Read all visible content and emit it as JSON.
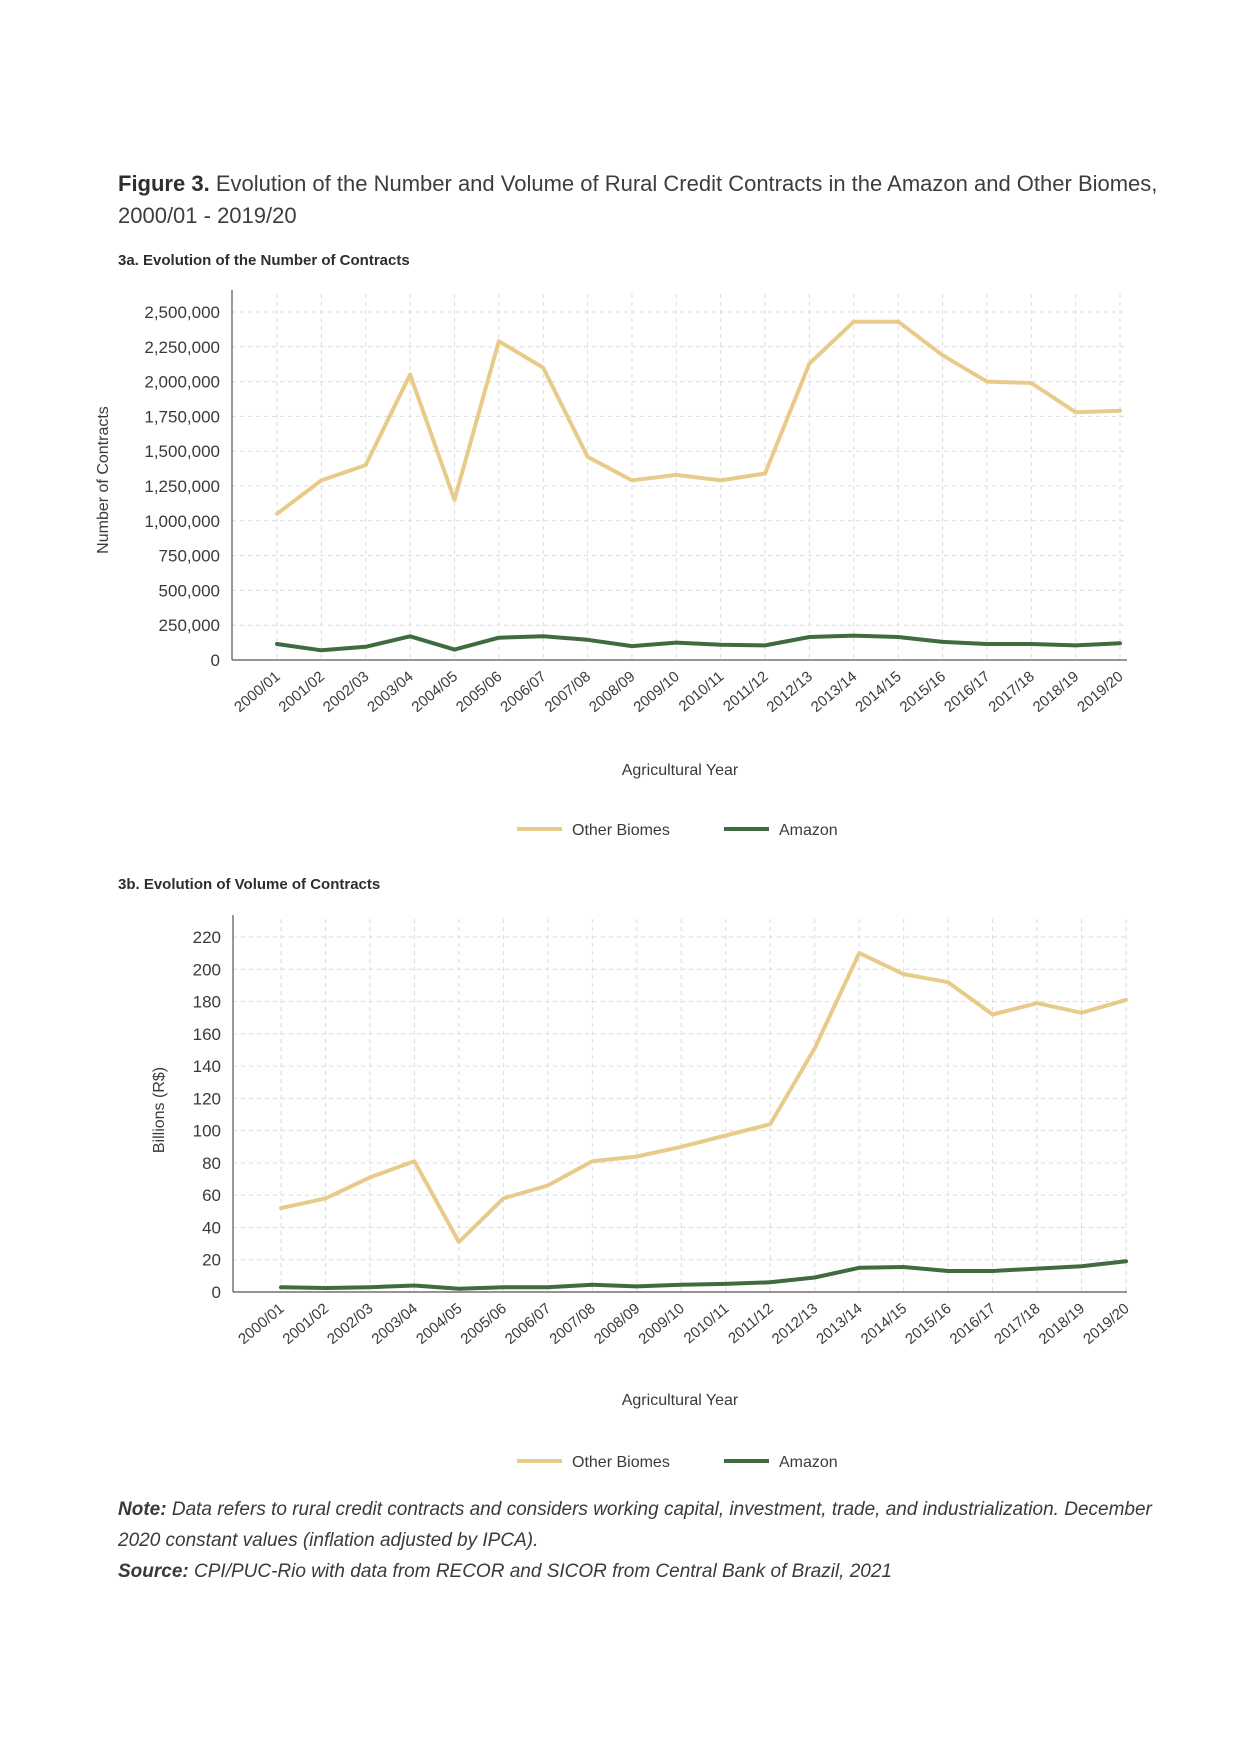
{
  "figure": {
    "label": "Figure 3.",
    "title": "Evolution of the Number and Volume of Rural Credit Contracts in the Amazon and Other Biomes, 2000/01 - 2019/20"
  },
  "colors": {
    "other_biomes": "#E8CB8A",
    "amazon": "#3E6B3F",
    "grid": "#dcdcdc"
  },
  "footer": {
    "note_label": "Note:",
    "note_text": "Data refers to rural credit contracts and considers working capital, investment, trade, and industrialization. December 2020 constant values (inflation adjusted by IPCA).",
    "source_label": "Source:",
    "source_text": "CPI/PUC-Rio with data from RECOR and SICOR from Central Bank of Brazil, 2021"
  },
  "chart_data": [
    {
      "type": "line",
      "title": "3a. Evolution of the Number of Contracts",
      "xlabel": "Agricultural Year",
      "ylabel": "Number of Contracts",
      "ylim": [
        0,
        2500000
      ],
      "yticks": [
        0,
        250000,
        500000,
        750000,
        1000000,
        1250000,
        1500000,
        1750000,
        2000000,
        2250000,
        2500000
      ],
      "ytick_labels": [
        "0",
        "250,000",
        "500,000",
        "750,000",
        "1,000,000",
        "1,250,000",
        "1,500,000",
        "1,750,000",
        "2,000,000",
        "2,250,000",
        "2,500,000"
      ],
      "grid": true,
      "legend": "bottom-center",
      "categories": [
        "2000/01",
        "2001/02",
        "2002/03",
        "2003/04",
        "2004/05",
        "2005/06",
        "2006/07",
        "2007/08",
        "2008/09",
        "2009/10",
        "2010/11",
        "2011/12",
        "2012/13",
        "2013/14",
        "2014/15",
        "2015/16",
        "2016/17",
        "2017/18",
        "2018/19",
        "2019/20"
      ],
      "series": [
        {
          "name": "Other Biomes",
          "color": "#E8CB8A",
          "values": [
            1050000,
            1290000,
            1400000,
            2050000,
            1150000,
            2290000,
            2100000,
            1460000,
            1290000,
            1330000,
            1290000,
            1340000,
            2130000,
            2430000,
            2430000,
            2190000,
            2000000,
            1990000,
            1780000,
            1790000
          ]
        },
        {
          "name": "Amazon",
          "color": "#3E6B3F",
          "values": [
            115000,
            70000,
            95000,
            170000,
            75000,
            160000,
            170000,
            145000,
            100000,
            125000,
            110000,
            105000,
            165000,
            175000,
            165000,
            130000,
            115000,
            115000,
            105000,
            120000
          ]
        }
      ]
    },
    {
      "type": "line",
      "title": "3b. Evolution of Volume of Contracts",
      "xlabel": "Agricultural Year",
      "ylabel": "Billions (R$)",
      "ylim": [
        0,
        220
      ],
      "yticks": [
        0,
        20,
        40,
        60,
        80,
        100,
        120,
        140,
        160,
        180,
        200,
        220
      ],
      "ytick_labels": [
        "0",
        "20",
        "40",
        "60",
        "80",
        "100",
        "120",
        "140",
        "160",
        "180",
        "200",
        "220"
      ],
      "grid": true,
      "legend": "bottom-center",
      "categories": [
        "2000/01",
        "2001/02",
        "2002/03",
        "2003/04",
        "2004/05",
        "2005/06",
        "2006/07",
        "2007/08",
        "2008/09",
        "2009/10",
        "2010/11",
        "2011/12",
        "2012/13",
        "2013/14",
        "2014/15",
        "2015/16",
        "2016/17",
        "2017/18",
        "2018/19",
        "2019/20"
      ],
      "series": [
        {
          "name": "Other Biomes",
          "color": "#E8CB8A",
          "values": [
            52,
            58,
            71,
            81,
            31,
            58,
            66,
            81,
            84,
            90,
            97,
            104,
            151,
            210,
            197,
            192,
            172,
            179,
            173,
            181
          ]
        },
        {
          "name": "Amazon",
          "color": "#3E6B3F",
          "values": [
            3,
            2.5,
            3,
            4,
            2,
            3,
            3,
            4.5,
            3.5,
            4.5,
            5,
            6,
            9,
            15,
            15.5,
            13,
            13,
            14.5,
            16,
            19
          ]
        }
      ]
    }
  ]
}
